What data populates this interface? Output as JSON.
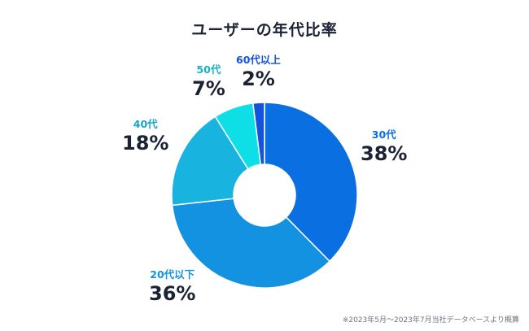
{
  "chart_data": {
    "type": "pie",
    "title": "ユーザーの年代比率",
    "categories": [
      "30代",
      "20代以下",
      "40代",
      "50代",
      "60代以上"
    ],
    "values": [
      38,
      36,
      18,
      7,
      2
    ],
    "value_labels": [
      "38%",
      "36%",
      "18%",
      "7%",
      "2%"
    ],
    "colors": [
      "#0a6fe0",
      "#1292e0",
      "#19b3e0",
      "#0edfe6",
      "#1452d8"
    ],
    "label_colors": [
      "#0a6fe0",
      "#1292e0",
      "#19a3c8",
      "#12b5c2",
      "#1452d8"
    ],
    "donut": true,
    "legend": "none"
  },
  "footnote": "※2023年5月～2023年7月当社データベースより概算"
}
